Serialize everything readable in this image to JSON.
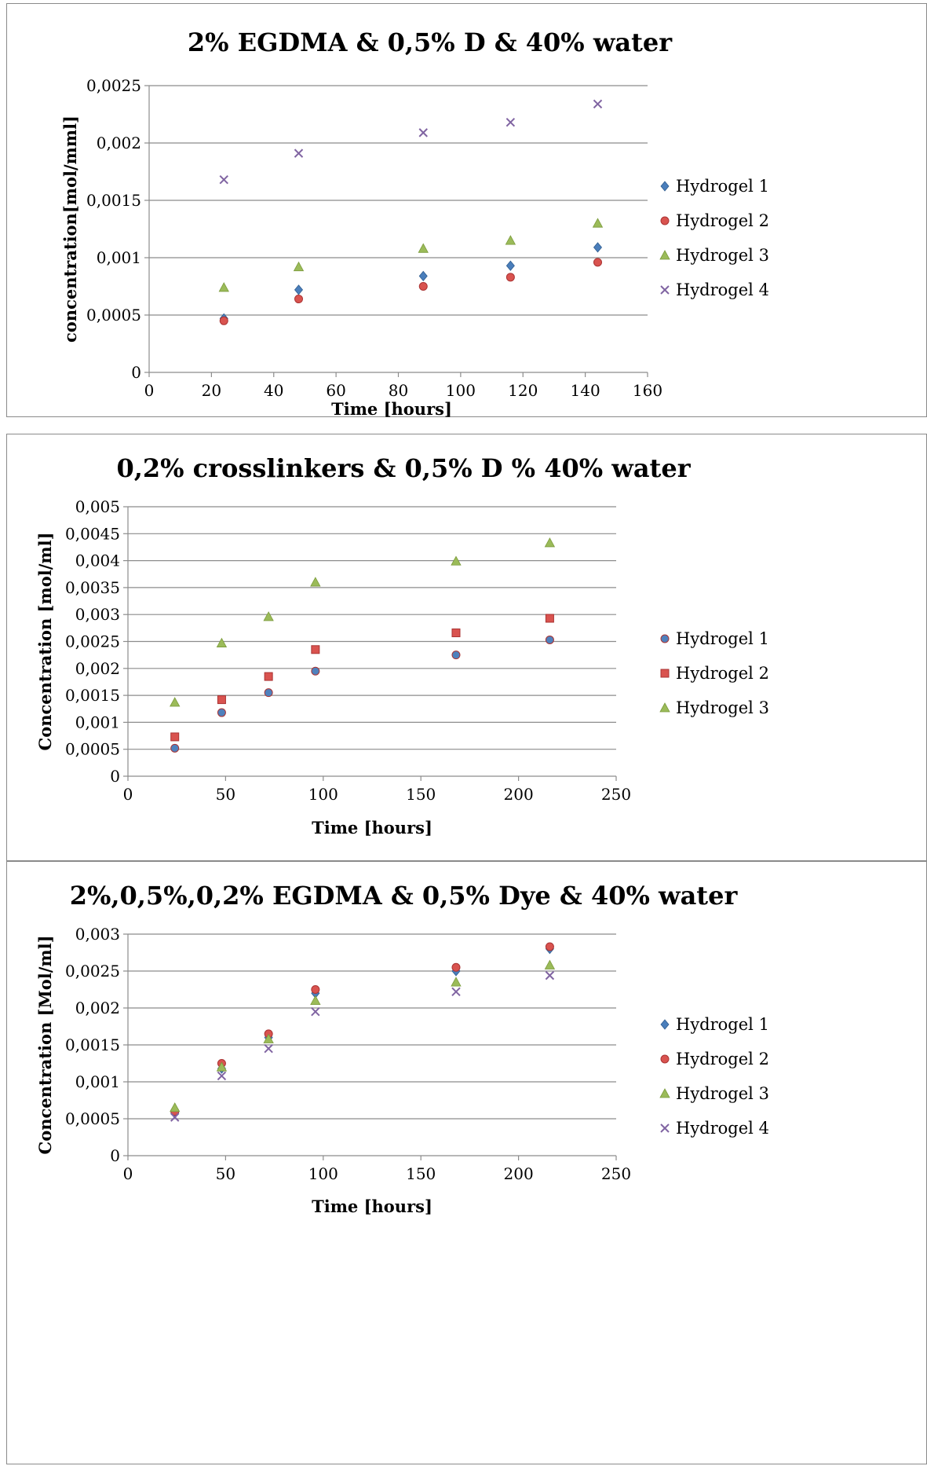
{
  "chart_data": [
    {
      "type": "scatter",
      "title": "2% EGDMA & 0,5% D & 40% water",
      "xlabel": "Time [hours]",
      "ylabel": "concentration[mol/mml]",
      "xlim": [
        0,
        160
      ],
      "ylim": [
        0,
        0.0025
      ],
      "x_ticks": [
        "0",
        "20",
        "40",
        "60",
        "80",
        "100",
        "120",
        "140",
        "160"
      ],
      "y_ticks": [
        "0",
        "0,0005",
        "0,001",
        "0,0015",
        "0,002",
        "0,0025"
      ],
      "grid": "horizontal",
      "legend_position": "right",
      "series": [
        {
          "name": "Hydrogel 1",
          "marker": "diamond",
          "color": "#4a7ebb",
          "x": [
            24,
            48,
            88,
            116,
            144
          ],
          "y": [
            0.00047,
            0.00072,
            0.00084,
            0.00093,
            0.00109
          ]
        },
        {
          "name": "Hydrogel 2",
          "marker": "circle",
          "color": "#d9534f",
          "x": [
            24,
            48,
            88,
            116,
            144
          ],
          "y": [
            0.00045,
            0.00064,
            0.00075,
            0.00083,
            0.00096
          ]
        },
        {
          "name": "Hydrogel 3",
          "marker": "triangle",
          "color": "#9bbb59",
          "x": [
            24,
            48,
            88,
            116,
            144
          ],
          "y": [
            0.00074,
            0.00092,
            0.00108,
            0.00115,
            0.0013
          ]
        },
        {
          "name": "Hydrogel 4",
          "marker": "x",
          "color": "#8064a2",
          "x": [
            24,
            48,
            88,
            116,
            144
          ],
          "y": [
            0.00168,
            0.00191,
            0.00209,
            0.00218,
            0.00234
          ]
        }
      ]
    },
    {
      "type": "scatter",
      "title": "0,2% crosslinkers & 0,5% D % 40% water",
      "xlabel": "Time  [hours]",
      "ylabel": "Concentration [mol/ml]",
      "xlim": [
        0,
        250
      ],
      "ylim": [
        0,
        0.005
      ],
      "x_ticks": [
        "0",
        "50",
        "100",
        "150",
        "200",
        "250"
      ],
      "y_ticks": [
        "0",
        "0,0005",
        "0,001",
        "0,0015",
        "0,002",
        "0,0025",
        "0,003",
        "0,0035",
        "0,004",
        "0,0045",
        "0,005"
      ],
      "grid": "horizontal",
      "legend_position": "right",
      "series": [
        {
          "name": "Hydrogel 1",
          "marker": "circle",
          "color": "#4f81bd",
          "x": [
            24,
            48,
            72,
            96,
            168,
            216
          ],
          "y": [
            0.00052,
            0.00118,
            0.00155,
            0.00195,
            0.00225,
            0.00253
          ]
        },
        {
          "name": "Hydrogel 2",
          "marker": "square",
          "color": "#d9534f",
          "x": [
            24,
            48,
            72,
            96,
            168,
            216
          ],
          "y": [
            0.00073,
            0.00142,
            0.00185,
            0.00235,
            0.00266,
            0.00293
          ]
        },
        {
          "name": "Hydrogel 3",
          "marker": "triangle",
          "color": "#9bbb59",
          "x": [
            24,
            48,
            72,
            96,
            168,
            216
          ],
          "y": [
            0.00137,
            0.00247,
            0.00296,
            0.0036,
            0.00399,
            0.00433
          ]
        }
      ]
    },
    {
      "type": "scatter",
      "title": "2%,0,5%,0,2% EGDMA & 0,5% Dye & 40% water",
      "xlabel": "Time [hours]",
      "ylabel": "Concentration   [Mol/ml]",
      "xlim": [
        0,
        250
      ],
      "ylim": [
        0,
        0.003
      ],
      "x_ticks": [
        "0",
        "50",
        "100",
        "150",
        "200",
        "250"
      ],
      "y_ticks": [
        "0",
        "0,0005",
        "0,001",
        "0,0015",
        "0,002",
        "0,0025",
        "0,003"
      ],
      "grid": "horizontal",
      "legend_position": "right",
      "series": [
        {
          "name": "Hydrogel 1",
          "marker": "diamond",
          "color": "#4a7ebb",
          "x": [
            24,
            48,
            72,
            96,
            168,
            216
          ],
          "y": [
            0.00058,
            0.00118,
            0.0016,
            0.0022,
            0.0025,
            0.0028
          ]
        },
        {
          "name": "Hydrogel 2",
          "marker": "circle",
          "color": "#d9534f",
          "x": [
            24,
            48,
            72,
            96,
            168,
            216
          ],
          "y": [
            0.0006,
            0.00125,
            0.00165,
            0.00225,
            0.00255,
            0.00283
          ]
        },
        {
          "name": "Hydrogel 3",
          "marker": "triangle",
          "color": "#9bbb59",
          "x": [
            24,
            48,
            72,
            96,
            168,
            216
          ],
          "y": [
            0.00065,
            0.0012,
            0.00158,
            0.0021,
            0.00235,
            0.00258
          ]
        },
        {
          "name": "Hydrogel 4",
          "marker": "x",
          "color": "#8064a2",
          "x": [
            24,
            48,
            72,
            96,
            168,
            216
          ],
          "y": [
            0.00052,
            0.00108,
            0.00145,
            0.00195,
            0.00222,
            0.00244
          ]
        }
      ]
    }
  ]
}
